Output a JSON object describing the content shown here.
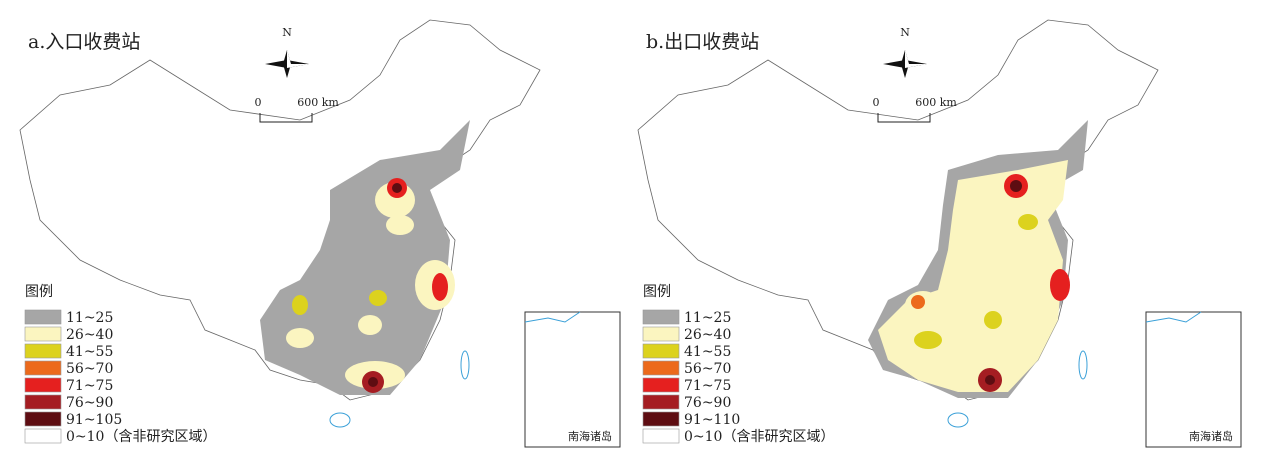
{
  "panels": [
    {
      "title": "a.入口收费站",
      "north": "N",
      "scale": {
        "start": "0",
        "end": "600 km"
      },
      "legend": {
        "title": "图例",
        "items": [
          {
            "label": "11~25",
            "color": "#a6a6a6"
          },
          {
            "label": "26~40",
            "color": "#fbf5c0"
          },
          {
            "label": "41~55",
            "color": "#dcd21e"
          },
          {
            "label": "56~70",
            "color": "#ec6a1c"
          },
          {
            "label": "71~75",
            "color": "#e5201f"
          },
          {
            "label": "76~90",
            "color": "#a51d22"
          },
          {
            "label": "91~105",
            "color": "#5e0d12"
          },
          {
            "label": "0~10（含非研究区域）",
            "color": "#ffffff"
          }
        ]
      },
      "inset_label": "南海诸岛"
    },
    {
      "title": "b.出口收费站",
      "north": "N",
      "scale": {
        "start": "0",
        "end": "600 km"
      },
      "legend": {
        "title": "图例",
        "items": [
          {
            "label": "11~25",
            "color": "#a6a6a6"
          },
          {
            "label": "26~40",
            "color": "#fbf5c0"
          },
          {
            "label": "41~55",
            "color": "#dcd21e"
          },
          {
            "label": "56~70",
            "color": "#ec6a1c"
          },
          {
            "label": "71~75",
            "color": "#e5201f"
          },
          {
            "label": "76~90",
            "color": "#a51d22"
          },
          {
            "label": "91~110",
            "color": "#5e0d12"
          },
          {
            "label": "0~10（含非研究区域）",
            "color": "#ffffff"
          }
        ]
      },
      "inset_label": "南海诸岛"
    }
  ]
}
